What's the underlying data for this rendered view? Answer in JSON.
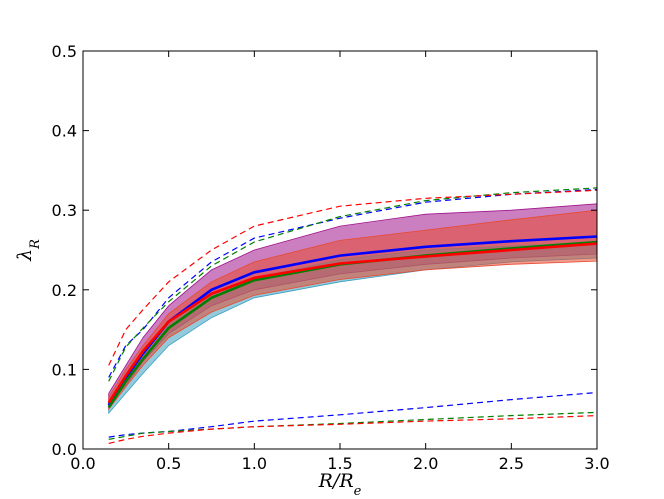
{
  "chart_data": {
    "type": "line",
    "title": "",
    "xlabel": "R/R_e",
    "ylabel": "λ_R",
    "xlim": [
      0.0,
      3.0
    ],
    "ylim": [
      0.0,
      0.5
    ],
    "xticks": [
      "0.0",
      "0.5",
      "1.0",
      "1.5",
      "2.0",
      "2.5",
      "3.0"
    ],
    "yticks": [
      "0.0",
      "0.1",
      "0.2",
      "0.3",
      "0.4",
      "0.5"
    ],
    "grid": false,
    "legend": "none",
    "x": [
      0.15,
      0.25,
      0.35,
      0.5,
      0.75,
      1.0,
      1.5,
      2.0,
      2.5,
      3.0
    ],
    "bands": [
      {
        "color": "#a0148c",
        "lower": [
          0.055,
          0.08,
          0.11,
          0.145,
          0.18,
          0.2,
          0.22,
          0.232,
          0.24,
          0.245
        ],
        "upper": [
          0.07,
          0.105,
          0.14,
          0.18,
          0.225,
          0.25,
          0.28,
          0.295,
          0.3,
          0.308
        ]
      },
      {
        "color": "#3a9fbf",
        "lower": [
          0.045,
          0.07,
          0.095,
          0.13,
          0.165,
          0.19,
          0.21,
          0.225,
          0.235,
          0.24
        ],
        "upper": [
          0.06,
          0.092,
          0.12,
          0.16,
          0.195,
          0.215,
          0.238,
          0.25,
          0.255,
          0.26
        ]
      },
      {
        "color": "#e84a30",
        "lower": [
          0.05,
          0.078,
          0.105,
          0.14,
          0.172,
          0.193,
          0.213,
          0.225,
          0.232,
          0.236
        ],
        "upper": [
          0.065,
          0.1,
          0.13,
          0.17,
          0.21,
          0.235,
          0.262,
          0.275,
          0.288,
          0.3
        ]
      }
    ],
    "series": [
      {
        "color": "#0000ff",
        "mean": [
          0.055,
          0.09,
          0.12,
          0.16,
          0.2,
          0.222,
          0.243,
          0.254,
          0.261,
          0.267
        ],
        "upper_dashed": [
          0.09,
          0.13,
          0.15,
          0.19,
          0.235,
          0.265,
          0.29,
          0.31,
          0.32,
          0.326
        ],
        "lower_dashed": [
          0.015,
          0.018,
          0.02,
          0.022,
          0.028,
          0.035,
          0.043,
          0.052,
          0.062,
          0.071
        ]
      },
      {
        "color": "#008000",
        "mean": [
          0.052,
          0.085,
          0.113,
          0.152,
          0.19,
          0.212,
          0.232,
          0.243,
          0.252,
          0.26
        ],
        "upper_dashed": [
          0.085,
          0.128,
          0.152,
          0.185,
          0.23,
          0.26,
          0.292,
          0.312,
          0.322,
          0.328
        ],
        "lower_dashed": [
          0.012,
          0.016,
          0.02,
          0.022,
          0.025,
          0.028,
          0.032,
          0.037,
          0.042,
          0.046
        ]
      },
      {
        "color": "#ff0000",
        "mean": [
          0.058,
          0.092,
          0.123,
          0.16,
          0.195,
          0.215,
          0.233,
          0.242,
          0.25,
          0.258
        ],
        "upper_dashed": [
          0.105,
          0.15,
          0.175,
          0.21,
          0.25,
          0.28,
          0.305,
          0.315,
          0.32,
          0.325
        ],
        "lower_dashed": [
          0.007,
          0.012,
          0.016,
          0.02,
          0.025,
          0.028,
          0.031,
          0.035,
          0.038,
          0.042
        ]
      }
    ]
  }
}
